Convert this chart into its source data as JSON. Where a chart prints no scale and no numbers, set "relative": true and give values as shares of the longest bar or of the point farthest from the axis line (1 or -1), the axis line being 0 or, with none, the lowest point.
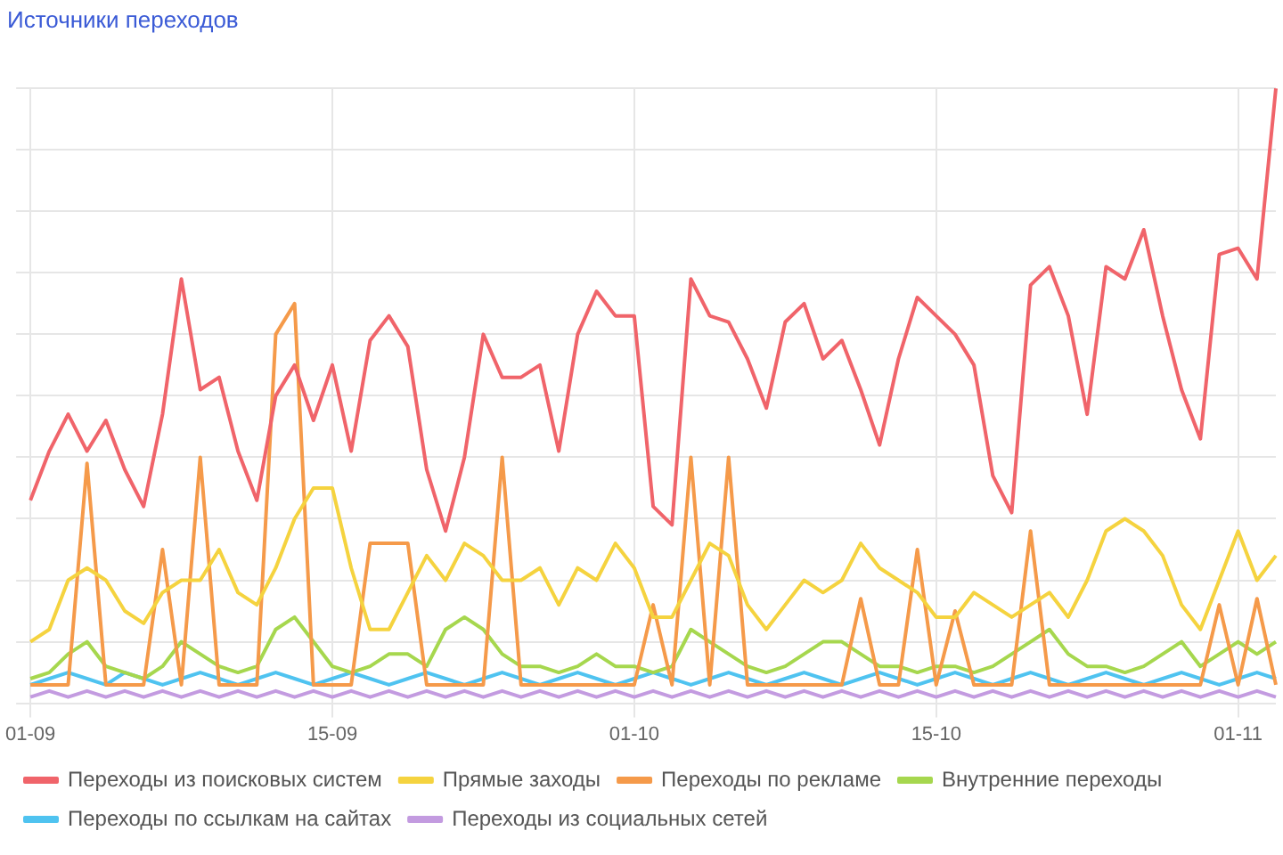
{
  "chart_data": {
    "type": "line",
    "title": "Источники переходов",
    "relative": true,
    "grid": true,
    "legend": "bottom",
    "marker": "none",
    "line_style": "solid",
    "categories": [
      "01-09",
      null,
      null,
      null,
      null,
      null,
      null,
      null,
      null,
      null,
      null,
      null,
      null,
      null,
      null,
      null,
      "15-09",
      null,
      null,
      null,
      null,
      null,
      null,
      null,
      null,
      null,
      null,
      null,
      null,
      null,
      null,
      null,
      "01-10",
      null,
      null,
      null,
      null,
      null,
      null,
      null,
      null,
      null,
      null,
      null,
      null,
      null,
      null,
      null,
      "15-10",
      null,
      null,
      null,
      null,
      null,
      null,
      null,
      null,
      null,
      null,
      null,
      null,
      null,
      null,
      null,
      "01-11",
      null,
      null
    ],
    "series": [
      {
        "name": "Переходы из поисковых систем",
        "color": "#f0646a",
        "values": [
          0.33,
          0.41,
          0.47,
          0.41,
          0.46,
          0.38,
          0.32,
          0.47,
          0.69,
          0.51,
          0.53,
          0.41,
          0.33,
          0.5,
          0.55,
          0.46,
          0.55,
          0.41,
          0.59,
          0.63,
          0.58,
          0.38,
          0.28,
          0.4,
          0.6,
          0.53,
          0.53,
          0.55,
          0.41,
          0.6,
          0.67,
          0.63,
          0.63,
          0.32,
          0.29,
          0.69,
          0.63,
          0.62,
          0.56,
          0.48,
          0.62,
          0.65,
          0.56,
          0.59,
          0.51,
          0.42,
          0.56,
          0.66,
          0.63,
          0.6,
          0.55,
          0.37,
          0.31,
          0.68,
          0.71,
          0.63,
          0.47,
          0.71,
          0.69,
          0.77,
          0.63,
          0.51,
          0.43,
          0.73,
          0.74,
          0.69,
          1
        ]
      },
      {
        "name": "Прямые заходы",
        "color": "#f5d33f",
        "values": [
          0.1,
          0.12,
          0.2,
          0.22,
          0.2,
          0.15,
          0.13,
          0.18,
          0.2,
          0.2,
          0.25,
          0.18,
          0.16,
          0.22,
          0.3,
          0.35,
          0.35,
          0.22,
          0.12,
          0.12,
          0.18,
          0.24,
          0.2,
          0.26,
          0.24,
          0.2,
          0.2,
          0.22,
          0.16,
          0.22,
          0.2,
          0.26,
          0.22,
          0.14,
          0.14,
          0.2,
          0.26,
          0.24,
          0.16,
          0.12,
          0.16,
          0.2,
          0.18,
          0.2,
          0.26,
          0.22,
          0.2,
          0.18,
          0.14,
          0.14,
          0.18,
          0.16,
          0.14,
          0.16,
          0.18,
          0.14,
          0.2,
          0.28,
          0.3,
          0.28,
          0.24,
          0.16,
          0.12,
          0.2,
          0.28,
          0.2,
          0.24
        ]
      },
      {
        "name": "Переходы по рекламе",
        "color": "#f59a4a",
        "values": [
          0.03,
          0.03,
          0.03,
          0.39,
          0.03,
          0.03,
          0.03,
          0.25,
          0.03,
          0.4,
          0.03,
          0.03,
          0.03,
          0.6,
          0.65,
          0.03,
          0.03,
          0.03,
          0.26,
          0.26,
          0.26,
          0.03,
          0.03,
          0.03,
          0.03,
          0.4,
          0.03,
          0.03,
          0.03,
          0.03,
          0.03,
          0.03,
          0.03,
          0.16,
          0.03,
          0.4,
          0.03,
          0.4,
          0.03,
          0.03,
          0.03,
          0.03,
          0.03,
          0.03,
          0.17,
          0.03,
          0.03,
          0.25,
          0.03,
          0.15,
          0.03,
          0.03,
          0.03,
          0.28,
          0.03,
          0.03,
          0.03,
          0.03,
          0.03,
          0.03,
          0.03,
          0.03,
          0.03,
          0.16,
          0.03,
          0.17,
          0.03
        ]
      },
      {
        "name": "Внутренние переходы",
        "color": "#a6d74e",
        "values": [
          0.04,
          0.05,
          0.08,
          0.1,
          0.06,
          0.05,
          0.04,
          0.06,
          0.1,
          0.08,
          0.06,
          0.05,
          0.06,
          0.12,
          0.14,
          0.1,
          0.06,
          0.05,
          0.06,
          0.08,
          0.08,
          0.06,
          0.12,
          0.14,
          0.12,
          0.08,
          0.06,
          0.06,
          0.05,
          0.06,
          0.08,
          0.06,
          0.06,
          0.05,
          0.06,
          0.12,
          0.1,
          0.08,
          0.06,
          0.05,
          0.06,
          0.08,
          0.1,
          0.1,
          0.08,
          0.06,
          0.06,
          0.05,
          0.06,
          0.06,
          0.05,
          0.06,
          0.08,
          0.1,
          0.12,
          0.08,
          0.06,
          0.06,
          0.05,
          0.06,
          0.08,
          0.1,
          0.06,
          0.08,
          0.1,
          0.08,
          0.1
        ]
      },
      {
        "name": "Переходы по ссылкам на сайтах",
        "color": "#4fc3f0",
        "values": [
          0.03,
          0.04,
          0.05,
          0.04,
          0.03,
          0.05,
          0.04,
          0.03,
          0.04,
          0.05,
          0.04,
          0.03,
          0.04,
          0.05,
          0.04,
          0.03,
          0.04,
          0.05,
          0.04,
          0.03,
          0.04,
          0.05,
          0.04,
          0.03,
          0.04,
          0.05,
          0.04,
          0.03,
          0.04,
          0.05,
          0.04,
          0.03,
          0.04,
          0.05,
          0.04,
          0.03,
          0.04,
          0.05,
          0.04,
          0.03,
          0.04,
          0.05,
          0.04,
          0.03,
          0.04,
          0.05,
          0.04,
          0.03,
          0.04,
          0.05,
          0.04,
          0.03,
          0.04,
          0.05,
          0.04,
          0.03,
          0.04,
          0.05,
          0.04,
          0.03,
          0.04,
          0.05,
          0.04,
          0.03,
          0.04,
          0.05,
          0.04
        ]
      },
      {
        "name": "Переходы из социальных сетей",
        "color": "#c39be0",
        "values": [
          0.01,
          0.02,
          0.01,
          0.02,
          0.01,
          0.02,
          0.01,
          0.02,
          0.01,
          0.02,
          0.01,
          0.02,
          0.01,
          0.02,
          0.01,
          0.02,
          0.01,
          0.02,
          0.01,
          0.02,
          0.01,
          0.02,
          0.01,
          0.02,
          0.01,
          0.02,
          0.01,
          0.02,
          0.01,
          0.02,
          0.01,
          0.02,
          0.01,
          0.02,
          0.01,
          0.02,
          0.01,
          0.02,
          0.01,
          0.02,
          0.01,
          0.02,
          0.01,
          0.02,
          0.01,
          0.02,
          0.01,
          0.02,
          0.01,
          0.02,
          0.01,
          0.02,
          0.01,
          0.02,
          0.01,
          0.02,
          0.01,
          0.02,
          0.01,
          0.02,
          0.01,
          0.02,
          0.01,
          0.02,
          0.01,
          0.02,
          0.01
        ]
      }
    ]
  }
}
